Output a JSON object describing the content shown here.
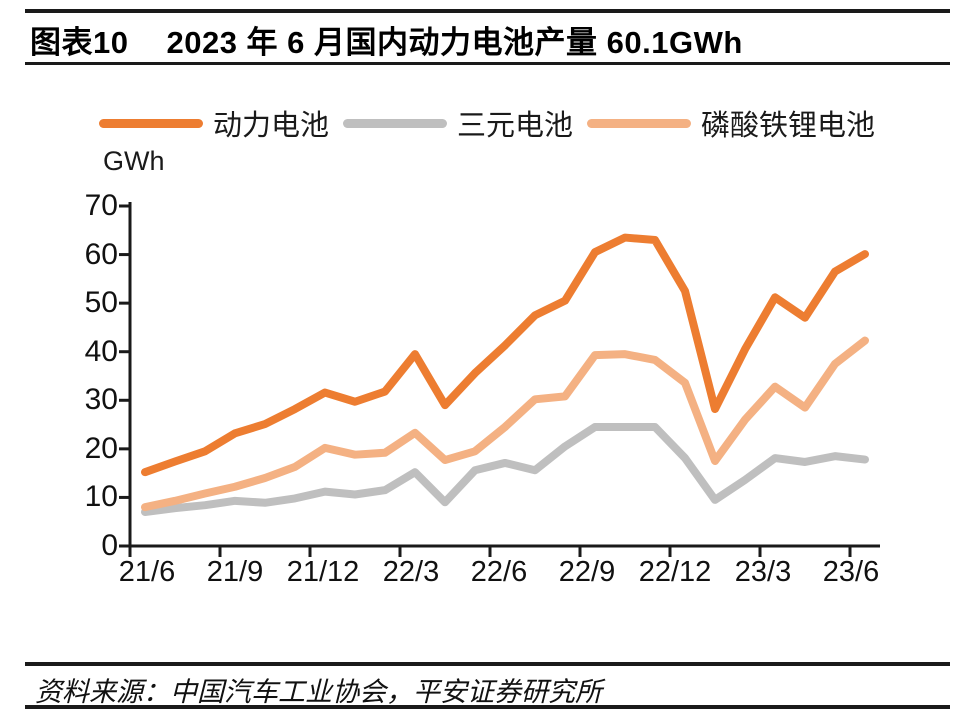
{
  "header": {
    "figure_label": "图表10",
    "title": "2023 年 6 月国内动力电池产量 60.1GWh"
  },
  "footer": {
    "source": "资料来源：中国汽车工业协会，平安证券研究所"
  },
  "chart_data": {
    "type": "line",
    "title": "2023 年 6 月国内动力电池产量 60.1GWh",
    "ylabel": "GWh",
    "xlabel": "",
    "ylim": [
      0,
      70
    ],
    "y_ticks": [
      0,
      10,
      20,
      30,
      40,
      50,
      60,
      70
    ],
    "grid": false,
    "legend_position": "top",
    "x": [
      "21/6",
      "21/7",
      "21/8",
      "21/9",
      "21/10",
      "21/11",
      "21/12",
      "22/1",
      "22/2",
      "22/3",
      "22/4",
      "22/5",
      "22/6",
      "22/7",
      "22/8",
      "22/9",
      "22/10",
      "22/11",
      "22/12",
      "23/1",
      "23/2",
      "23/3",
      "23/4",
      "23/5",
      "23/6"
    ],
    "x_tick_labels": [
      "21/6",
      "21/9",
      "21/12",
      "22/3",
      "22/6",
      "22/9",
      "22/12",
      "23/3",
      "23/6"
    ],
    "series": [
      {
        "name": "动力电池",
        "color": "#ED7D31",
        "values": [
          15.2,
          17.4,
          19.5,
          23.2,
          25.1,
          28.2,
          31.6,
          29.7,
          31.8,
          39.5,
          29.0,
          35.6,
          41.3,
          47.5,
          50.5,
          60.5,
          63.5,
          63.0,
          52.5,
          28.2,
          40.5,
          51.2,
          47.0,
          56.5,
          60.1
        ]
      },
      {
        "name": "三元电池",
        "color": "#BFBFBF",
        "values": [
          7.0,
          7.8,
          8.4,
          9.3,
          8.9,
          9.8,
          11.2,
          10.6,
          11.5,
          15.2,
          9.0,
          15.6,
          17.1,
          15.6,
          20.5,
          24.5,
          24.5,
          24.5,
          18.1,
          9.5,
          13.6,
          18.1,
          17.3,
          18.5,
          17.8
        ]
      },
      {
        "name": "磷酸铁锂电池",
        "color": "#F4B183",
        "values": [
          8.0,
          9.3,
          10.8,
          12.2,
          14.0,
          16.3,
          20.2,
          18.8,
          19.2,
          23.3,
          17.7,
          19.5,
          24.5,
          30.2,
          30.8,
          39.3,
          39.5,
          38.3,
          33.6,
          17.5,
          26.0,
          32.8,
          28.5,
          37.5,
          42.3
        ]
      }
    ]
  }
}
